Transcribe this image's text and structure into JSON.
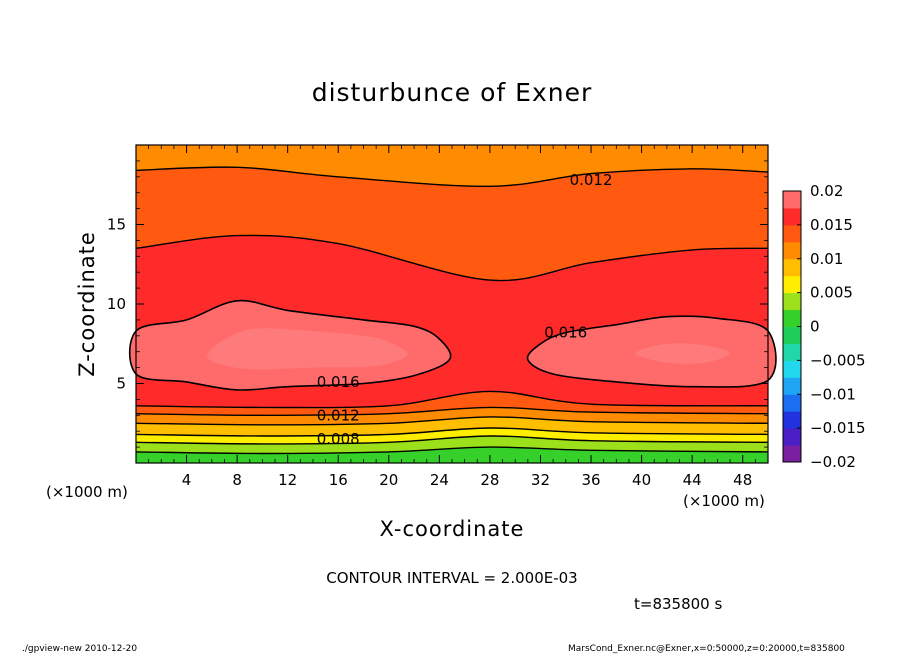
{
  "chart_data": {
    "type": "contour",
    "title": "disturbunce of Exner",
    "xlabel": "X-coordinate",
    "ylabel": "Z-coordinate",
    "x_unit": "(×1000 m)",
    "y_unit": "(×1000 m)",
    "xlim": [
      0,
      50
    ],
    "ylim": [
      0,
      20
    ],
    "x_ticks": [
      4,
      8,
      12,
      16,
      20,
      24,
      28,
      32,
      36,
      40,
      44,
      48
    ],
    "y_ticks": [
      5,
      10,
      15
    ],
    "colorbar": {
      "tick_labels": [
        "0.02",
        "0.015",
        "0.01",
        "0.005",
        "0",
        "−0.005",
        "−0.01",
        "−0.015",
        "−0.02"
      ],
      "bands": [
        {
          "from": -0.02,
          "to": -0.0175,
          "color": "#7a1fa0"
        },
        {
          "from": -0.0175,
          "to": -0.015,
          "color": "#4b1ec6"
        },
        {
          "from": -0.015,
          "to": -0.0125,
          "color": "#2233dd"
        },
        {
          "from": -0.0125,
          "to": -0.01,
          "color": "#1a6ef0"
        },
        {
          "from": -0.01,
          "to": -0.0075,
          "color": "#1ea6f5"
        },
        {
          "from": -0.0075,
          "to": -0.005,
          "color": "#22d8ee"
        },
        {
          "from": -0.005,
          "to": -0.0025,
          "color": "#1fd7a9"
        },
        {
          "from": -0.0025,
          "to": 0.0,
          "color": "#1fcf5a"
        },
        {
          "from": 0.0,
          "to": 0.0025,
          "color": "#35d02a"
        },
        {
          "from": 0.0025,
          "to": 0.005,
          "color": "#9ce01c"
        },
        {
          "from": 0.005,
          "to": 0.0075,
          "color": "#ffee00"
        },
        {
          "from": 0.0075,
          "to": 0.01,
          "color": "#ffbf00"
        },
        {
          "from": 0.01,
          "to": 0.0125,
          "color": "#ff8c00"
        },
        {
          "from": 0.0125,
          "to": 0.015,
          "color": "#ff5a10"
        },
        {
          "from": 0.015,
          "to": 0.0175,
          "color": "#ff2a2a"
        },
        {
          "from": 0.0175,
          "to": 0.02,
          "color": "#ff6a6a"
        }
      ]
    },
    "contours": [
      {
        "level": 0.004,
        "y": [
          [
            0,
            0.7
          ],
          [
            10,
            0.6
          ],
          [
            20,
            0.7
          ],
          [
            28,
            1.0
          ],
          [
            36,
            0.8
          ],
          [
            50,
            0.7
          ]
        ]
      },
      {
        "level": 0.006,
        "y": [
          [
            0,
            1.3
          ],
          [
            10,
            1.2
          ],
          [
            20,
            1.3
          ],
          [
            28,
            1.7
          ],
          [
            36,
            1.4
          ],
          [
            50,
            1.3
          ]
        ]
      },
      {
        "level": 0.008,
        "y": [
          [
            0,
            1.8
          ],
          [
            10,
            1.7
          ],
          [
            20,
            1.8
          ],
          [
            28,
            2.2
          ],
          [
            36,
            1.9
          ],
          [
            50,
            1.8
          ]
        ]
      },
      {
        "level": 0.01,
        "y": [
          [
            0,
            2.5
          ],
          [
            10,
            2.4
          ],
          [
            20,
            2.5
          ],
          [
            28,
            2.9
          ],
          [
            36,
            2.6
          ],
          [
            50,
            2.5
          ]
        ]
      },
      {
        "level": 0.012,
        "y": [
          [
            0,
            3.1
          ],
          [
            10,
            3.0
          ],
          [
            20,
            3.1
          ],
          [
            28,
            3.5
          ],
          [
            36,
            3.2
          ],
          [
            50,
            3.1
          ]
        ]
      },
      {
        "level": 0.014,
        "y": [
          [
            0,
            3.6
          ],
          [
            10,
            3.5
          ],
          [
            20,
            3.6
          ],
          [
            28,
            4.5
          ],
          [
            36,
            3.7
          ],
          [
            50,
            3.6
          ]
        ]
      },
      {
        "level": 0.014,
        "y": [
          [
            0,
            13.5
          ],
          [
            8,
            14.3
          ],
          [
            16,
            13.8
          ],
          [
            28,
            11.5
          ],
          [
            36,
            12.6
          ],
          [
            44,
            13.4
          ],
          [
            50,
            13.5
          ]
        ]
      },
      {
        "level": 0.012,
        "y": [
          [
            0,
            18.4
          ],
          [
            8,
            18.6
          ],
          [
            16,
            18.0
          ],
          [
            28,
            17.4
          ],
          [
            36,
            18.2
          ],
          [
            44,
            18.5
          ],
          [
            50,
            18.3
          ]
        ]
      }
    ],
    "closed_contours": [
      {
        "level": 0.016,
        "points": [
          [
            0,
            8.3
          ],
          [
            4,
            9.0
          ],
          [
            8,
            10.2
          ],
          [
            12,
            9.6
          ],
          [
            18,
            9.0
          ],
          [
            22,
            8.6
          ],
          [
            24,
            7.8
          ],
          [
            24.8,
            6.5
          ],
          [
            22,
            5.5
          ],
          [
            18,
            5.0
          ],
          [
            12,
            4.8
          ],
          [
            8,
            4.6
          ],
          [
            4,
            5.1
          ],
          [
            0,
            5.6
          ]
        ]
      },
      {
        "level": 0.016,
        "points": [
          [
            50,
            8.3
          ],
          [
            46,
            9.1
          ],
          [
            42,
            9.2
          ],
          [
            38,
            8.7
          ],
          [
            34,
            8.2
          ],
          [
            32,
            7.5
          ],
          [
            31,
            6.5
          ],
          [
            33,
            5.6
          ],
          [
            38,
            5.1
          ],
          [
            44,
            4.8
          ],
          [
            50,
            5.2
          ]
        ]
      }
    ],
    "hot_cores": [
      {
        "points": [
          [
            6,
            7.2
          ],
          [
            9,
            8.4
          ],
          [
            14,
            8.3
          ],
          [
            18,
            8.0
          ],
          [
            20,
            7.6
          ],
          [
            21.5,
            6.8
          ],
          [
            19,
            6.1
          ],
          [
            14,
            6.0
          ],
          [
            9,
            5.9
          ],
          [
            6,
            6.4
          ]
        ]
      },
      {
        "points": [
          [
            39.5,
            6.9
          ],
          [
            42,
            7.5
          ],
          [
            45,
            7.4
          ],
          [
            47,
            6.9
          ],
          [
            45,
            6.3
          ],
          [
            42,
            6.3
          ]
        ]
      }
    ],
    "contour_labels": [
      {
        "text": "0.012",
        "x": 36,
        "y": 17.8
      },
      {
        "text": "0.016",
        "x": 34,
        "y": 8.2
      },
      {
        "text": "0.016",
        "x": 16,
        "y": 5.1
      },
      {
        "text": "0.012",
        "x": 16,
        "y": 3.0
      },
      {
        "text": "0.008",
        "x": 16,
        "y": 1.5
      }
    ]
  },
  "annotations": {
    "contour_interval": "CONTOUR INTERVAL = 2.000E-03",
    "time": "t=835800 s",
    "footer_left": "./gpview-new   2010-12-20",
    "footer_right": "MarsCond_Exner.nc@Exner,x=0:50000,z=0:20000,t=835800"
  }
}
